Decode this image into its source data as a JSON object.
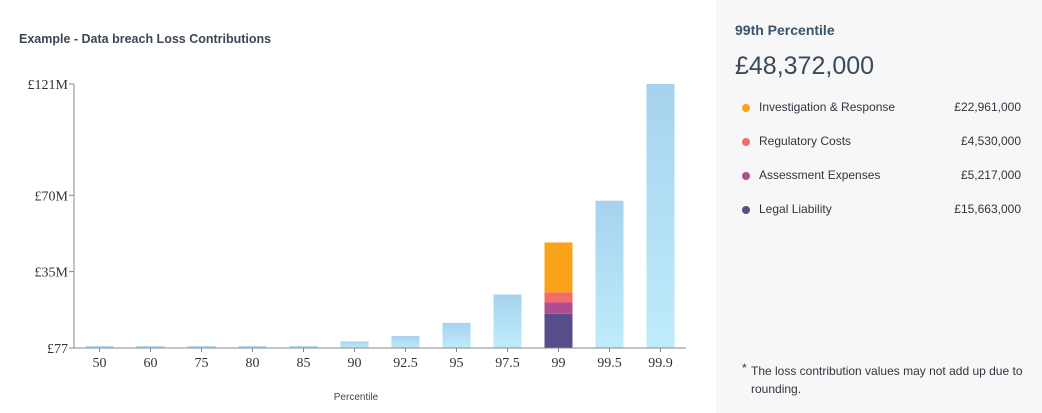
{
  "chart_data": {
    "type": "bar",
    "title": "Example - Data breach Loss Contributions",
    "xlabel": "Percentile",
    "ylabel": "",
    "categories": [
      "50",
      "60",
      "75",
      "80",
      "85",
      "90",
      "92.5",
      "95",
      "97.5",
      "99",
      "99.5",
      "99.9"
    ],
    "values": [
      0.9,
      0.9,
      0.9,
      0.9,
      0.9,
      3.0,
      5.5,
      11.5,
      24.5,
      48.372,
      67.5,
      121.0
    ],
    "value_unit": "£M",
    "y_ticks": [
      "£77",
      "£35M",
      "£70M",
      "£121M"
    ],
    "stacked_category": "99",
    "stack": [
      {
        "name": "Legal Liability",
        "value": 15.663
      },
      {
        "name": "Assessment Expenses",
        "value": 5.217
      },
      {
        "name": "Regulatory Costs",
        "value": 4.53
      },
      {
        "name": "Investigation & Response",
        "value": 22.961
      }
    ],
    "grid": false,
    "legend_position": "right"
  },
  "colors": {
    "bar_top": "#a6d2ef",
    "bar_bottom": "#bfecfb",
    "axis": "#888888",
    "Investigation & Response": "#f9a31a",
    "Regulatory Costs": "#f36b6b",
    "Assessment Expenses": "#b04d8f",
    "Legal Liability": "#554e8a"
  },
  "panel": {
    "heading": "99th Percentile",
    "total": "£48,372,000",
    "items": [
      {
        "label": "Investigation & Response",
        "value": "£22,961,000",
        "color": "#f9a31a"
      },
      {
        "label": "Regulatory Costs",
        "value": "£4,530,000",
        "color": "#f36b6b"
      },
      {
        "label": "Assessment Expenses",
        "value": "£5,217,000",
        "color": "#b04d8f"
      },
      {
        "label": "Legal Liability",
        "value": "£15,663,000",
        "color": "#554e8a"
      }
    ],
    "footnote_star": "*",
    "footnote": "The loss contribution values may not add up due to rounding."
  }
}
